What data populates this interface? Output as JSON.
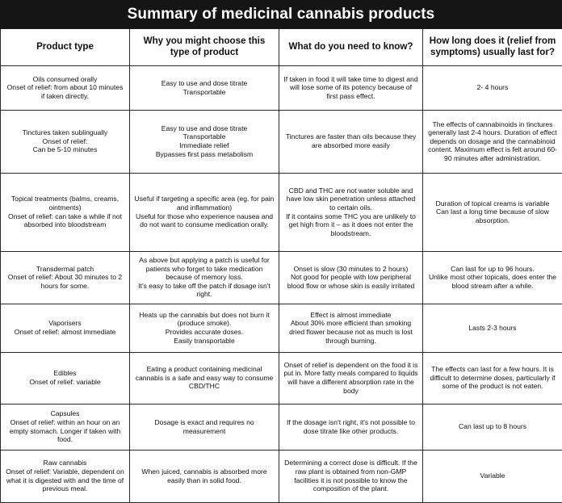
{
  "title": "Summary of medicinal cannabis products",
  "headers": [
    "Product type",
    "Why you might choose this type of product",
    "What do you need to know?",
    "How long does it (relief from symptoms) usually last for?"
  ],
  "rows": [
    [
      "Oils consumed orally\nOnset of relief: from about 10 minutes if taken directly.",
      "Easy to use and dose titrate\nTransportable",
      "If taken in food it will take time to digest and will lose some of its potency because of first pass effect.",
      "2- 4 hours"
    ],
    [
      "Tinctures taken sublingually\nOnset of relief:\nCan be 5-10 minutes",
      "Easy to use and dose titrate\nTransportable\nImmediate relief\nBypasses first pass metabolism",
      "Tinctures are faster than oils because they are absorbed more easily",
      "The effects of cannabinoids in tinctures generally last 2-4 hours. Duration of effect depends on dosage and the cannabinoid content. Maximum effect is felt around 60-90 minutes after administration."
    ],
    [
      "Topical treatments (balms, creams, ointments)\nOnset of relief: can take a while if not absorbed into bloodstream",
      "Useful if targeting a specific area (eg. for pain and inflammation)\nUseful for those who experience nausea and do not want to consume medication orally.",
      "CBD and THC are not water soluble and have low skin penetration unless attached to certain oils.\nIf it contains some THC you are unlikely to get high from it – as it does not enter the bloodstream.",
      "Duration of topical creams is variable\nCan last a long time because of slow absorption."
    ],
    [
      "Transdermal patch\nOnset of relief: About 30 minutes to 2 hours for some.",
      "As above but applying a patch is useful for patients who forget to take medication because of memory loss.\nIt's easy to take off the patch if dosage isn't right.",
      "Onset is slow (30 minutes to 2 hours)\nNot good for people with low peripheral blood flow or whose skin is easily irritated",
      "Can last for up to 96 hours.\nUnlike most other topicals, does enter the blood stream after a while."
    ],
    [
      "Vaporisers\nOnset of relief: almost immediate",
      "Heats up the cannabis but does not burn it (produce smoke).\nProvides accurate doses.\nEasily transportable",
      "Effect is almost immediate\nAbout 30% more efficient than smoking dried flower because not as much is lost through burning.",
      "Lasts 2-3 hours"
    ],
    [
      "Edibles\nOnset of relief: variable",
      "Eating a product containing medicinal cannabis is a safe and easy way to consume CBD/THC",
      "Onset of relief is dependent on the food it is put in. More fatty meals compared to liquids will have a different absorption rate in the body",
      "The effects can last for a few hours. It is difficult to determine doses, particularly if some of the product is not eaten."
    ],
    [
      "Capsules\nOnset of relief: within an hour on an empty stomach. Longer if taken with food.",
      "Dosage is exact and requires no measurement",
      "If the dosage isn't right, it's not possible to dose titrate like other products.",
      "Can last up to 8 hours"
    ],
    [
      "Raw cannabis\nOnset of relief: Variable, dependent on what it is digested with and the time of previous meal.",
      "When juiced, cannabis is absorbed more easily than in solid food.",
      "Determining a correct dose is difficult. If the raw plant is obtained from non-GMP facilities it is not possible to know the composition of the plant.",
      "Variable"
    ]
  ]
}
